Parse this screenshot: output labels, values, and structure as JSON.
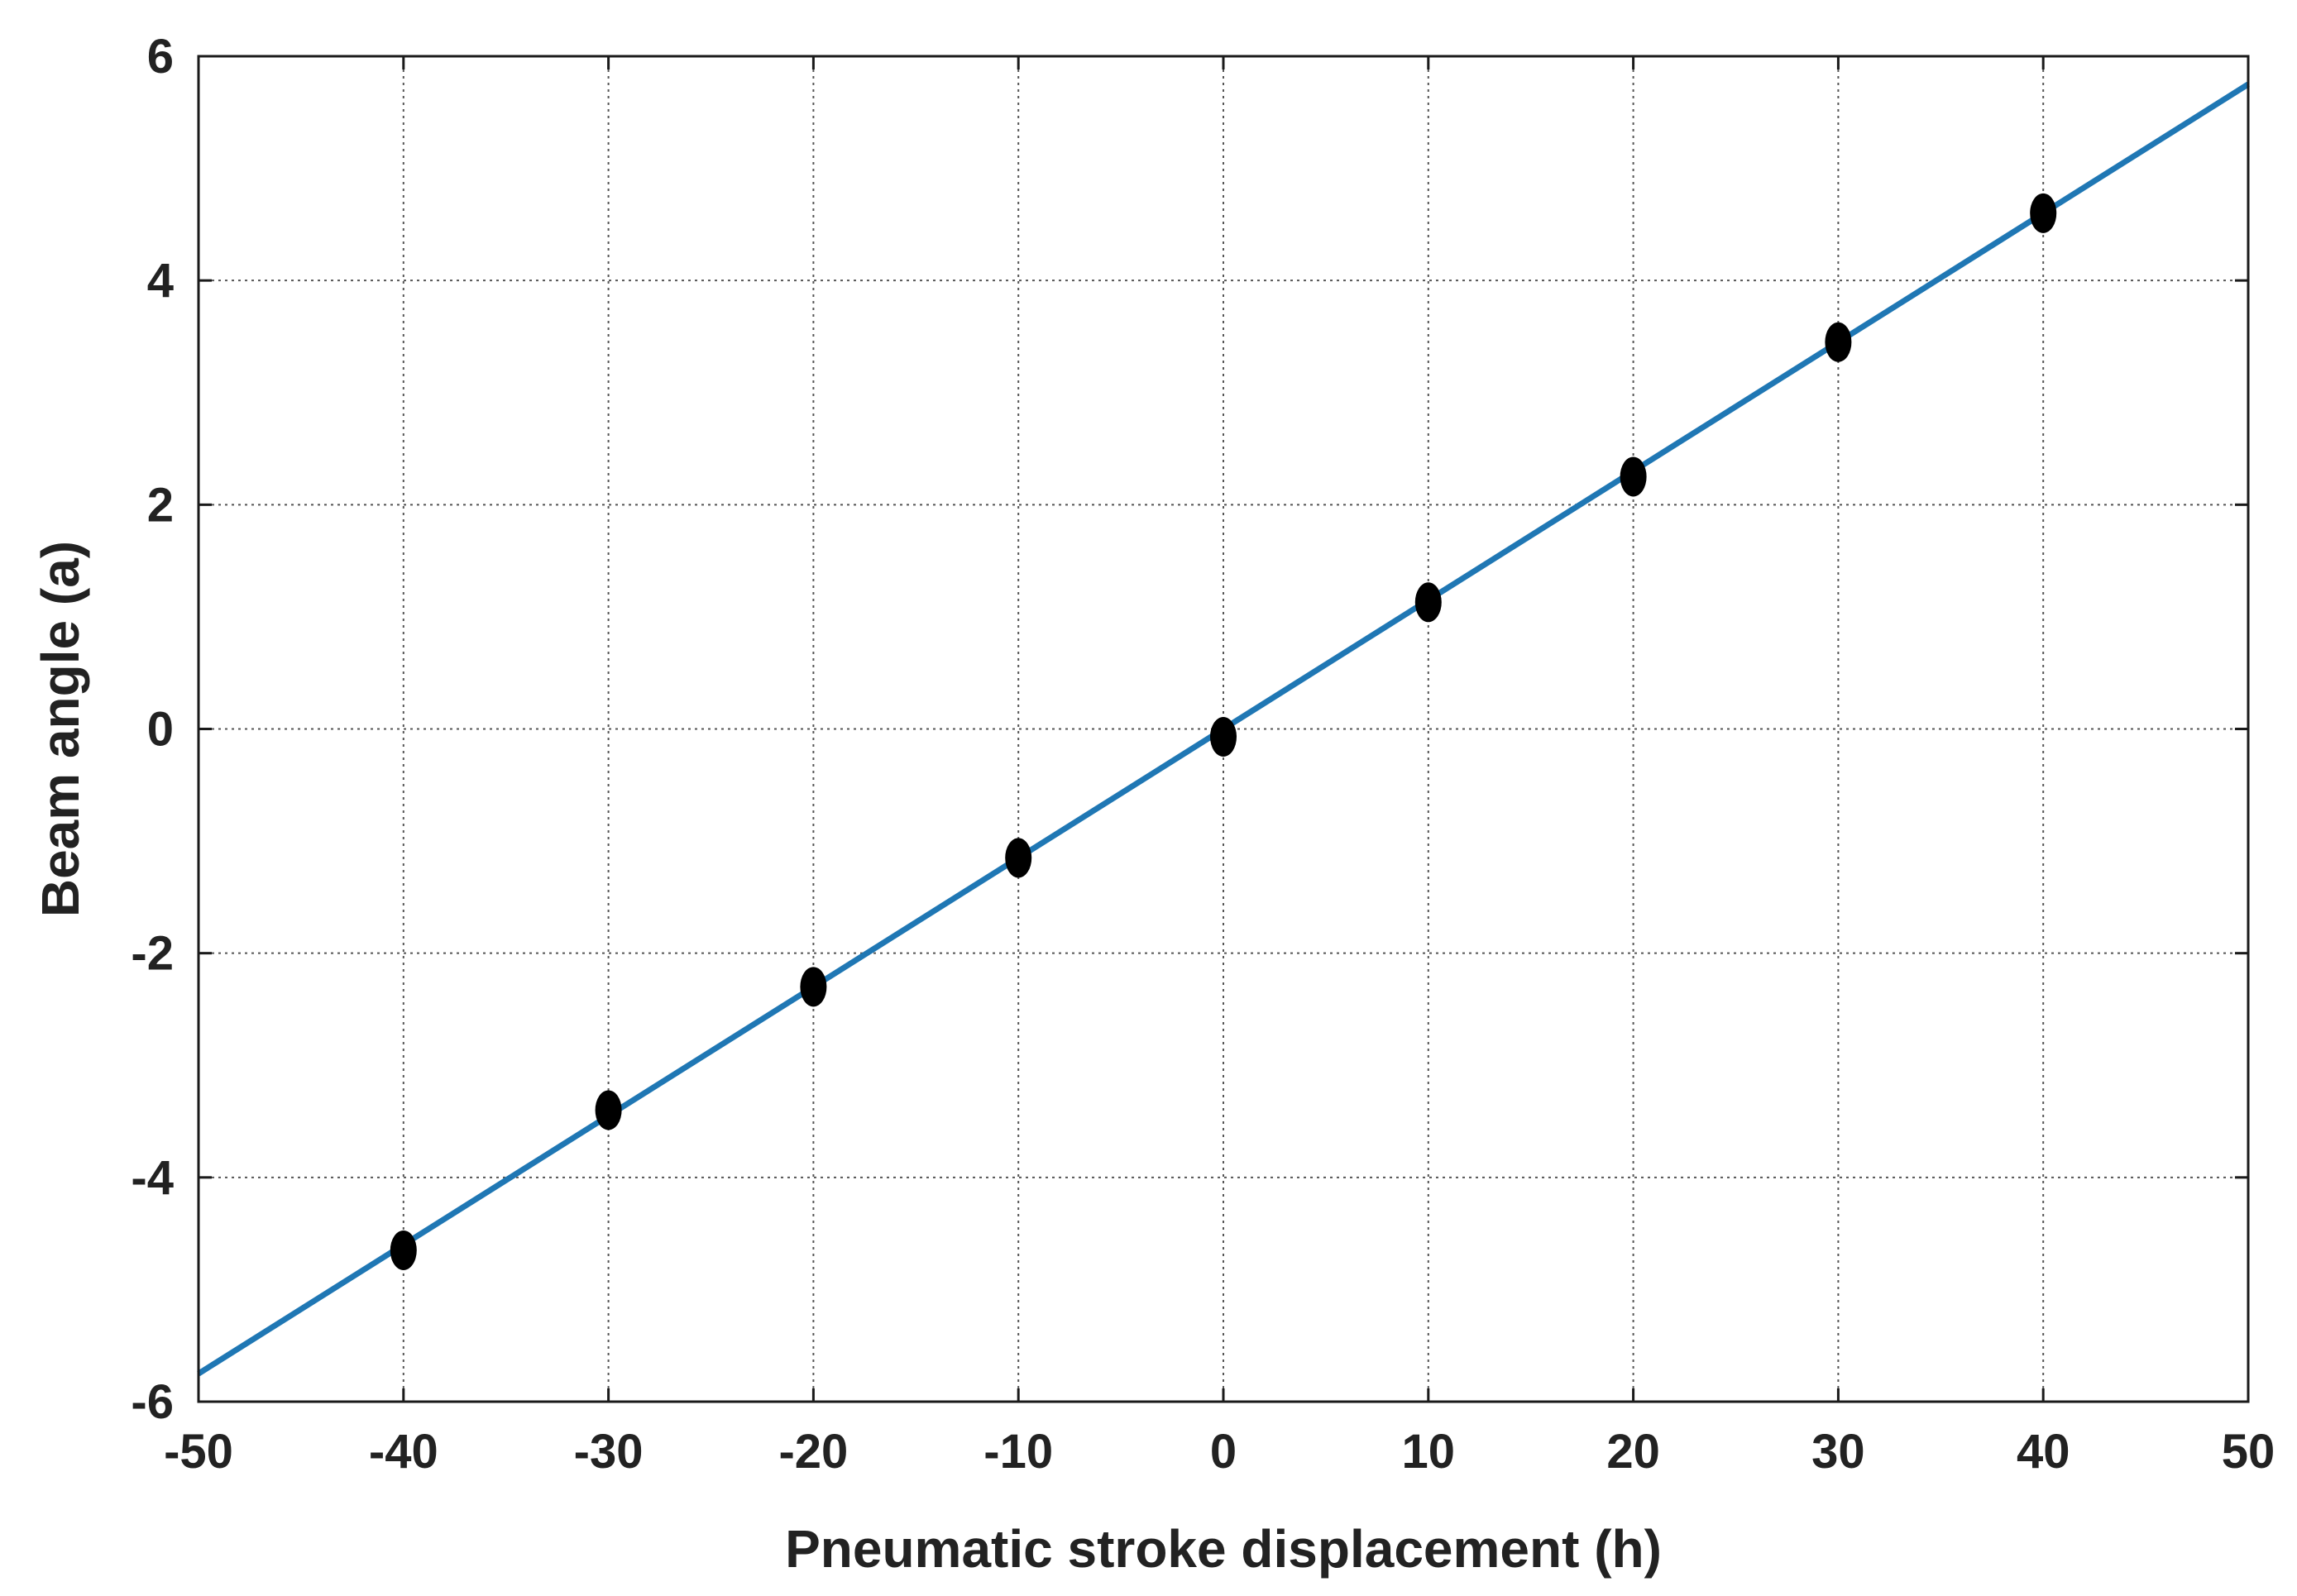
{
  "chart_data": {
    "type": "scatter",
    "title": "",
    "xlabel": "Pneumatic stroke displacement (h)",
    "ylabel": "Beam angle (a)",
    "xlim": [
      -50,
      50
    ],
    "ylim": [
      -6,
      6
    ],
    "x_ticks": [
      -50,
      -40,
      -30,
      -20,
      -10,
      0,
      10,
      20,
      30,
      40,
      50
    ],
    "y_ticks": [
      -6,
      -4,
      -2,
      0,
      2,
      4,
      6
    ],
    "x_tick_labels": [
      "-50",
      "-40",
      "-30",
      "-20",
      "-10",
      "0",
      "10",
      "20",
      "30",
      "40",
      "50"
    ],
    "y_tick_labels": [
      "-6",
      "-4",
      "-2",
      "0",
      "2",
      "4",
      "6"
    ],
    "grid": true,
    "legend": "none",
    "series": [
      {
        "kind": "points",
        "color": "#000000",
        "x": [
          -40,
          -30,
          -20,
          -10,
          0,
          10,
          20,
          30,
          40
        ],
        "y": [
          -4.65,
          -3.4,
          -2.3,
          -1.15,
          -0.07,
          1.13,
          2.25,
          3.45,
          4.6
        ]
      },
      {
        "kind": "line",
        "color": "#1f77b4",
        "x": [
          -50,
          50
        ],
        "y": [
          -5.75,
          5.75
        ]
      }
    ]
  }
}
